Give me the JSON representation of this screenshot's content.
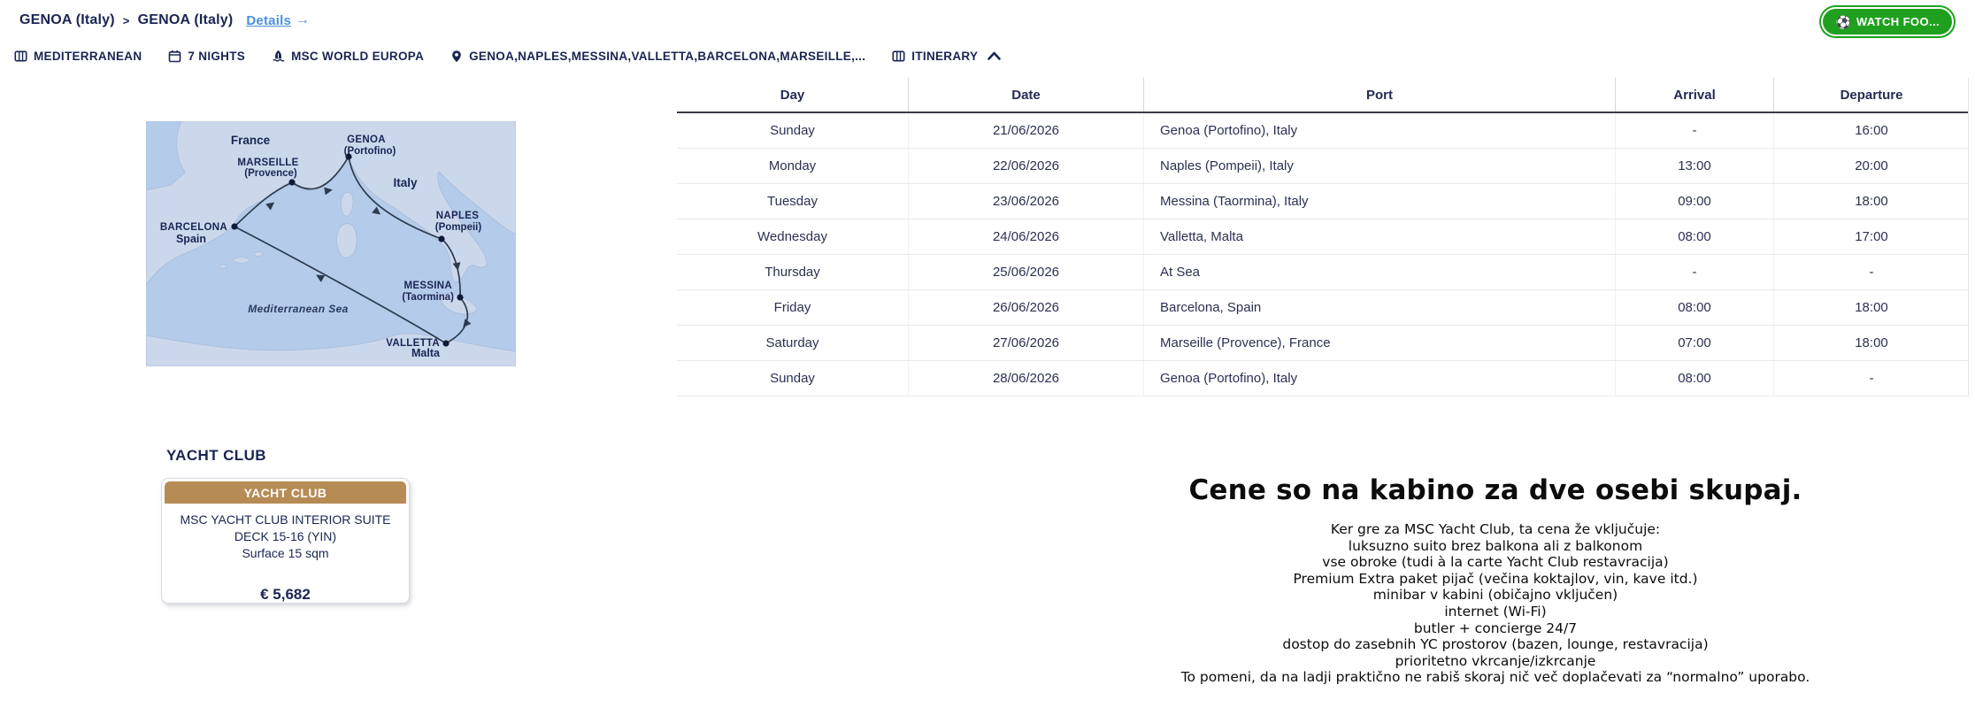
{
  "breadcrumb": {
    "crumb1": "GENOA (Italy)",
    "separator": ">",
    "crumb2": "GENOA (Italy)",
    "details_label": "Details",
    "details_arrow": "→"
  },
  "header": {
    "watch_button_label": "WATCH FOO...",
    "watch_button_icon": "soccer-ball",
    "watch_button_color": "#1fa11f"
  },
  "tags": [
    {
      "icon": "map-icon",
      "label": "MEDITERRANEAN"
    },
    {
      "icon": "calendar-icon",
      "label": "7 NIGHTS"
    },
    {
      "icon": "ship-icon",
      "label": "MSC WORLD EUROPA"
    },
    {
      "icon": "pin-icon",
      "label": "GENOA,NAPLES,MESSINA,VALLETTA,BARCELONA,MARSEILLE,..."
    },
    {
      "icon": "itinerary-icon",
      "label": "ITINERARY",
      "chevron": "up"
    }
  ],
  "map": {
    "countries": {
      "france": "France",
      "italy": "Italy",
      "spain": "Spain",
      "malta": "Malta"
    },
    "sea_label": "Mediterranean Sea",
    "ports": {
      "genoa": {
        "name": "GENOA",
        "sub": "(Portofino)"
      },
      "marseille": {
        "name": "MARSEILLE",
        "sub": "(Provence)"
      },
      "barcelona": {
        "name": "BARCELONA"
      },
      "naples": {
        "name": "NAPLES",
        "sub": "(Pompeii)"
      },
      "messina": {
        "name": "MESSINA",
        "sub": "(Taormina)"
      },
      "valletta": {
        "name": "VALLETTA"
      }
    }
  },
  "itinerary_table": {
    "columns": [
      "Day",
      "Date",
      "Port",
      "Arrival",
      "Departure"
    ],
    "rows": [
      [
        "Sunday",
        "21/06/2026",
        "Genoa (Portofino), Italy",
        "-",
        "16:00"
      ],
      [
        "Monday",
        "22/06/2026",
        "Naples (Pompeii), Italy",
        "13:00",
        "20:00"
      ],
      [
        "Tuesday",
        "23/06/2026",
        "Messina (Taormina), Italy",
        "09:00",
        "18:00"
      ],
      [
        "Wednesday",
        "24/06/2026",
        "Valletta, Malta",
        "08:00",
        "17:00"
      ],
      [
        "Thursday",
        "25/06/2026",
        "At Sea",
        "-",
        "-"
      ],
      [
        "Friday",
        "26/06/2026",
        "Barcelona, Spain",
        "08:00",
        "18:00"
      ],
      [
        "Saturday",
        "27/06/2026",
        "Marseille (Provence), France",
        "07:00",
        "18:00"
      ],
      [
        "Sunday",
        "28/06/2026",
        "Genoa (Portofino), Italy",
        "08:00",
        "-"
      ]
    ]
  },
  "yacht_section": {
    "heading": "YACHT CLUB",
    "card": {
      "header": "YACHT CLUB",
      "title": "MSC YACHT CLUB INTERIOR SUITE",
      "deck": "DECK 15-16 (YIN)",
      "surface": "Surface 15 sqm",
      "price": "€ 5,682",
      "header_color": "#b78b55"
    }
  },
  "pricing_info": {
    "heading": "Cene so na kabino za dve osebi skupaj.",
    "lines": [
      "Ker gre za MSC Yacht Club, ta cena že vključuje:",
      "luksuzno suito brez balkona ali z balkonom",
      "vse obroke (tudi à la carte Yacht Club restavracija)",
      "Premium Extra paket pijač (večina koktajlov, vin, kave itd.)",
      "minibar v kabini (običajno vključen)",
      "internet (Wi-Fi)",
      "butler + concierge 24/7",
      "dostop do zasebnih YC prostorov (bazen, lounge, restavracija)",
      "prioritetno vkrcanje/izkrcanje",
      "To pomeni, da na ladji praktično ne rabiš skoraj nič več doplačevati za “normalno” uporabo."
    ]
  },
  "colors": {
    "navy_text": "#1a2553",
    "link_blue": "#4a90e2",
    "button_green": "#1fa11f",
    "gold": "#b78b55",
    "map_sea": "#b4cbe9",
    "map_land": "#cbd8ec",
    "route": "#2c3b4d"
  }
}
